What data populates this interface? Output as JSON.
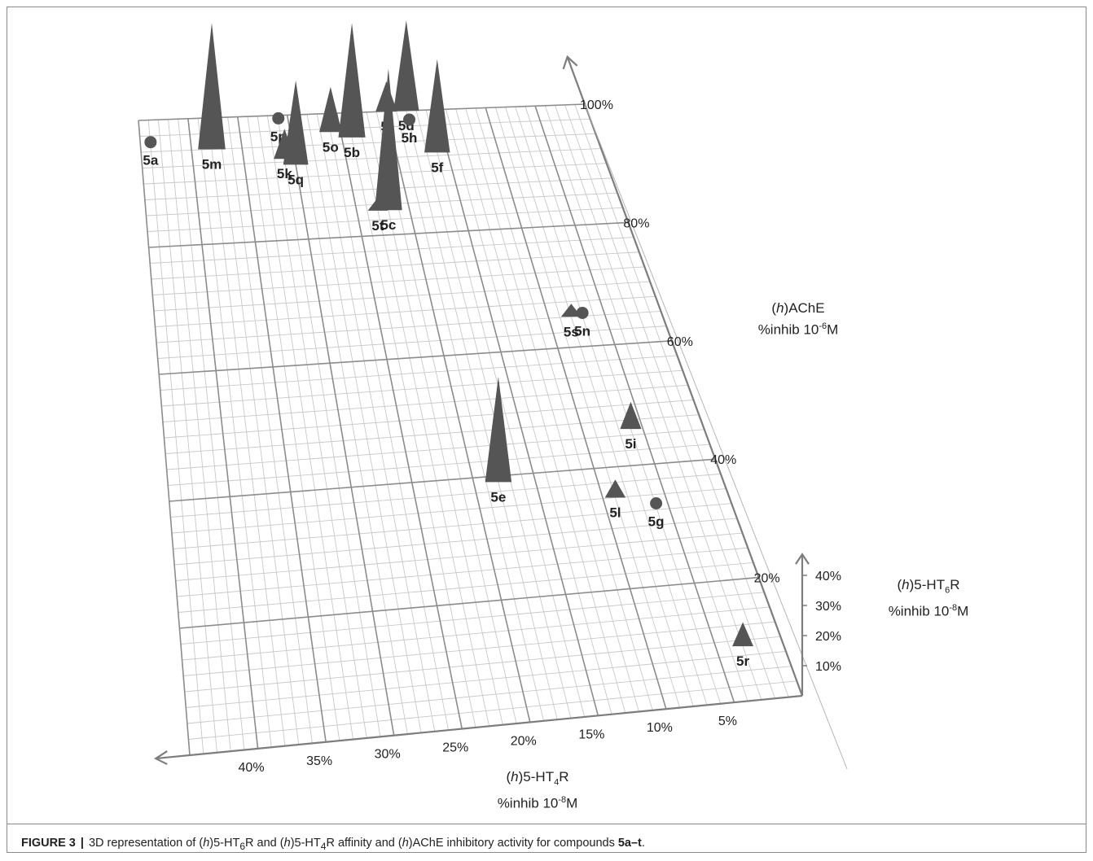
{
  "figure": {
    "label": "FIGURE 3",
    "separator": "|",
    "caption_parts": {
      "p1": "3D representation of (",
      "h1": "h",
      "p2": ")5-HT",
      "s1": "6",
      "p3": "R and (",
      "h2": "h",
      "p4": ")5-HT",
      "s2": "4",
      "p5": "R affinity and (",
      "h3": "h",
      "p6": ")AChE inhibitory activity for compounds ",
      "compounds": "5a–t",
      "end": "."
    }
  },
  "axes": {
    "ht4": {
      "title_pre": "(",
      "title_h": "h",
      "title_mid": ")5-HT",
      "title_sub": "4",
      "title_post": "R",
      "unit_pre": "%inhib 10",
      "unit_exp": "-8",
      "unit_post": "M",
      "ticks": [
        "40%",
        "35%",
        "30%",
        "25%",
        "20%",
        "15%",
        "10%",
        "5%"
      ]
    },
    "ache": {
      "title_pre": "(",
      "title_h": "h",
      "title_post": ")AChE",
      "unit_pre": "%inhib 10",
      "unit_exp": "-6",
      "unit_post": "M",
      "ticks": [
        "20%",
        "40%",
        "60%",
        "80%",
        "100%"
      ]
    },
    "ht6": {
      "title_pre": "(",
      "title_h": "h",
      "title_mid": ")5-HT",
      "title_sub": "6",
      "title_post": "R",
      "unit_pre": "%inhib 10",
      "unit_exp": "-8",
      "unit_post": "M",
      "ticks": [
        "10%",
        "20%",
        "30%",
        "40%"
      ]
    }
  },
  "chart_data": {
    "type": "scatter",
    "dimensions": "3d",
    "x_axis": "5-HT4R %inhib 10-8M",
    "y_axis": "AChE %inhib 10-6M",
    "z_axis": "5-HT6R %inhib 10-8M",
    "xlim": [
      0,
      45
    ],
    "ylim": [
      0,
      100
    ],
    "zlim": [
      0,
      45
    ],
    "grid": true,
    "marker_legend": "circle = no 5-HT6R height; triangle height = 5-HT6R %inhib",
    "points": [
      {
        "label": "5a",
        "ht4": 44,
        "ache": 96,
        "ht6": 0,
        "marker": "circle"
      },
      {
        "label": "5m",
        "ht4": 38,
        "ache": 95,
        "ht6": 42,
        "marker": "triangle"
      },
      {
        "label": "5p",
        "ht4": 31,
        "ache": 99,
        "ht6": 0,
        "marker": "circle"
      },
      {
        "label": "5k",
        "ht4": 31,
        "ache": 93,
        "ht6": 10,
        "marker": "triangle"
      },
      {
        "label": "5q",
        "ht4": 30,
        "ache": 92,
        "ht6": 28,
        "marker": "triangle"
      },
      {
        "label": "5o",
        "ht4": 26,
        "ache": 97,
        "ht6": 15,
        "marker": "triangle"
      },
      {
        "label": "5b",
        "ht4": 24,
        "ache": 96,
        "ht6": 38,
        "marker": "triangle"
      },
      {
        "label": "5c",
        "ht4": 22,
        "ache": 84,
        "ht6": 47,
        "marker": "triangle"
      },
      {
        "label": "5t",
        "ht4": 23,
        "ache": 84,
        "ht6": 3,
        "marker": "triangle"
      },
      {
        "label": "5j",
        "ht4": 20,
        "ache": 100,
        "ht6": 10,
        "marker": "triangle"
      },
      {
        "label": "5d",
        "ht4": 18,
        "ache": 100,
        "ht6": 30,
        "marker": "triangle"
      },
      {
        "label": "5h",
        "ht4": 18,
        "ache": 98,
        "ht6": 0,
        "marker": "circle"
      },
      {
        "label": "5f",
        "ht4": 16,
        "ache": 93,
        "ht6": 31,
        "marker": "triangle"
      },
      {
        "label": "5s",
        "ht4": 8,
        "ache": 65,
        "ht6": 4,
        "marker": "triangle"
      },
      {
        "label": "5n",
        "ht4": 7,
        "ache": 65,
        "ht6": 0,
        "marker": "circle"
      },
      {
        "label": "5i",
        "ht4": 6,
        "ache": 46,
        "ht6": 9,
        "marker": "triangle"
      },
      {
        "label": "5e",
        "ht4": 18,
        "ache": 39,
        "ht6": 35,
        "marker": "triangle"
      },
      {
        "label": "5l",
        "ht4": 9,
        "ache": 35,
        "ht6": 6,
        "marker": "triangle"
      },
      {
        "label": "5g",
        "ht4": 6,
        "ache": 33,
        "ht6": 0,
        "marker": "circle"
      },
      {
        "label": "5r",
        "ht4": 3,
        "ache": 9,
        "ht6": 8,
        "marker": "triangle"
      }
    ],
    "colors": {
      "grid": "#c8c8c8",
      "grid_major": "#8c8c8c",
      "axis": "#7d7d7d",
      "marker": "#555555",
      "text": "#222222"
    }
  }
}
